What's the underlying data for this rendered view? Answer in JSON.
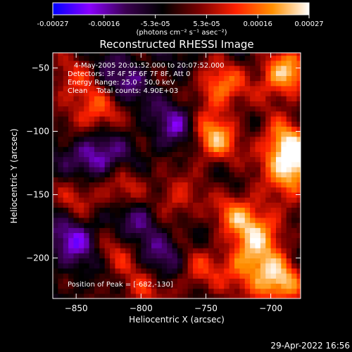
{
  "colorbar": {
    "tick_labels": [
      "-0.00027",
      "-0.00016",
      "-5.3e-05",
      "5.3e-05",
      "0.00016",
      "0.00027"
    ],
    "units_label": "(photons cm⁻² s⁻¹ asec⁻²)",
    "range": [
      -0.00027,
      0.00027
    ],
    "colors": [
      "#0000ff",
      "#8a00ff",
      "#3a0050",
      "#000000",
      "#7a0000",
      "#ff2000",
      "#ff9000",
      "#ffffff"
    ]
  },
  "chart_data": {
    "type": "heatmap",
    "title": "Reconstructed RHESSI Image",
    "xlabel": "Heliocentric X (arcsec)",
    "ylabel": "Heliocentric Y (arcsec)",
    "xlim": [
      -868,
      -677
    ],
    "ylim": [
      -232,
      -38
    ],
    "x_ticks": [
      -850,
      -800,
      -750,
      -700
    ],
    "y_ticks": [
      -50,
      -100,
      -150,
      -200
    ],
    "x_tick_labels": [
      "−850",
      "−800",
      "−750",
      "−700"
    ],
    "y_tick_labels": [
      "−50",
      "−100",
      "−150",
      "−200"
    ],
    "annotations": [
      "4-May-2005 20:01:52.000 to 20:07:52.000",
      "Detectors: 3F 4F 5F 6F 7F 8F, Att 0",
      "Energy Range: 25.0 - 50.0 keV",
      "Clean    Total counts: 4.90E+03"
    ],
    "peak_label": "Position of Peak = [-682,-130]",
    "peak": [
      -682,
      -130
    ],
    "grid": false,
    "hotspots": [
      {
        "x": -690,
        "y": -55,
        "intensity": 0.00026
      },
      {
        "x": -740,
        "y": -65,
        "intensity": 0.0002
      },
      {
        "x": -745,
        "y": -105,
        "intensity": 0.00024
      },
      {
        "x": -682,
        "y": -130,
        "intensity": 0.00027
      },
      {
        "x": -690,
        "y": -110,
        "intensity": 0.00022
      },
      {
        "x": -835,
        "y": -85,
        "intensity": 0.00018
      },
      {
        "x": -855,
        "y": -60,
        "intensity": 0.00012
      },
      {
        "x": -810,
        "y": -145,
        "intensity": 0.00012
      },
      {
        "x": -775,
        "y": -155,
        "intensity": 0.00015
      },
      {
        "x": -725,
        "y": -165,
        "intensity": 0.00018
      },
      {
        "x": -845,
        "y": -150,
        "intensity": 0.00013
      },
      {
        "x": -820,
        "y": -195,
        "intensity": 0.0001
      },
      {
        "x": -800,
        "y": -225,
        "intensity": 0.00012
      },
      {
        "x": -760,
        "y": -210,
        "intensity": 0.00014
      },
      {
        "x": -720,
        "y": -205,
        "intensity": 0.00019
      },
      {
        "x": -695,
        "y": -220,
        "intensity": 0.00025
      },
      {
        "x": -705,
        "y": -180,
        "intensity": 0.00017
      }
    ],
    "coldspots": [
      {
        "x": -835,
        "y": -120,
        "intensity": -0.00018
      },
      {
        "x": -850,
        "y": -185,
        "intensity": -0.00015
      },
      {
        "x": -800,
        "y": -165,
        "intensity": -0.00014
      },
      {
        "x": -770,
        "y": -95,
        "intensity": -0.00013
      },
      {
        "x": -780,
        "y": -200,
        "intensity": -0.00012
      },
      {
        "x": -815,
        "y": -60,
        "intensity": -0.0001
      }
    ]
  },
  "footer": {
    "timestamp": "29-Apr-2022 16:56"
  }
}
